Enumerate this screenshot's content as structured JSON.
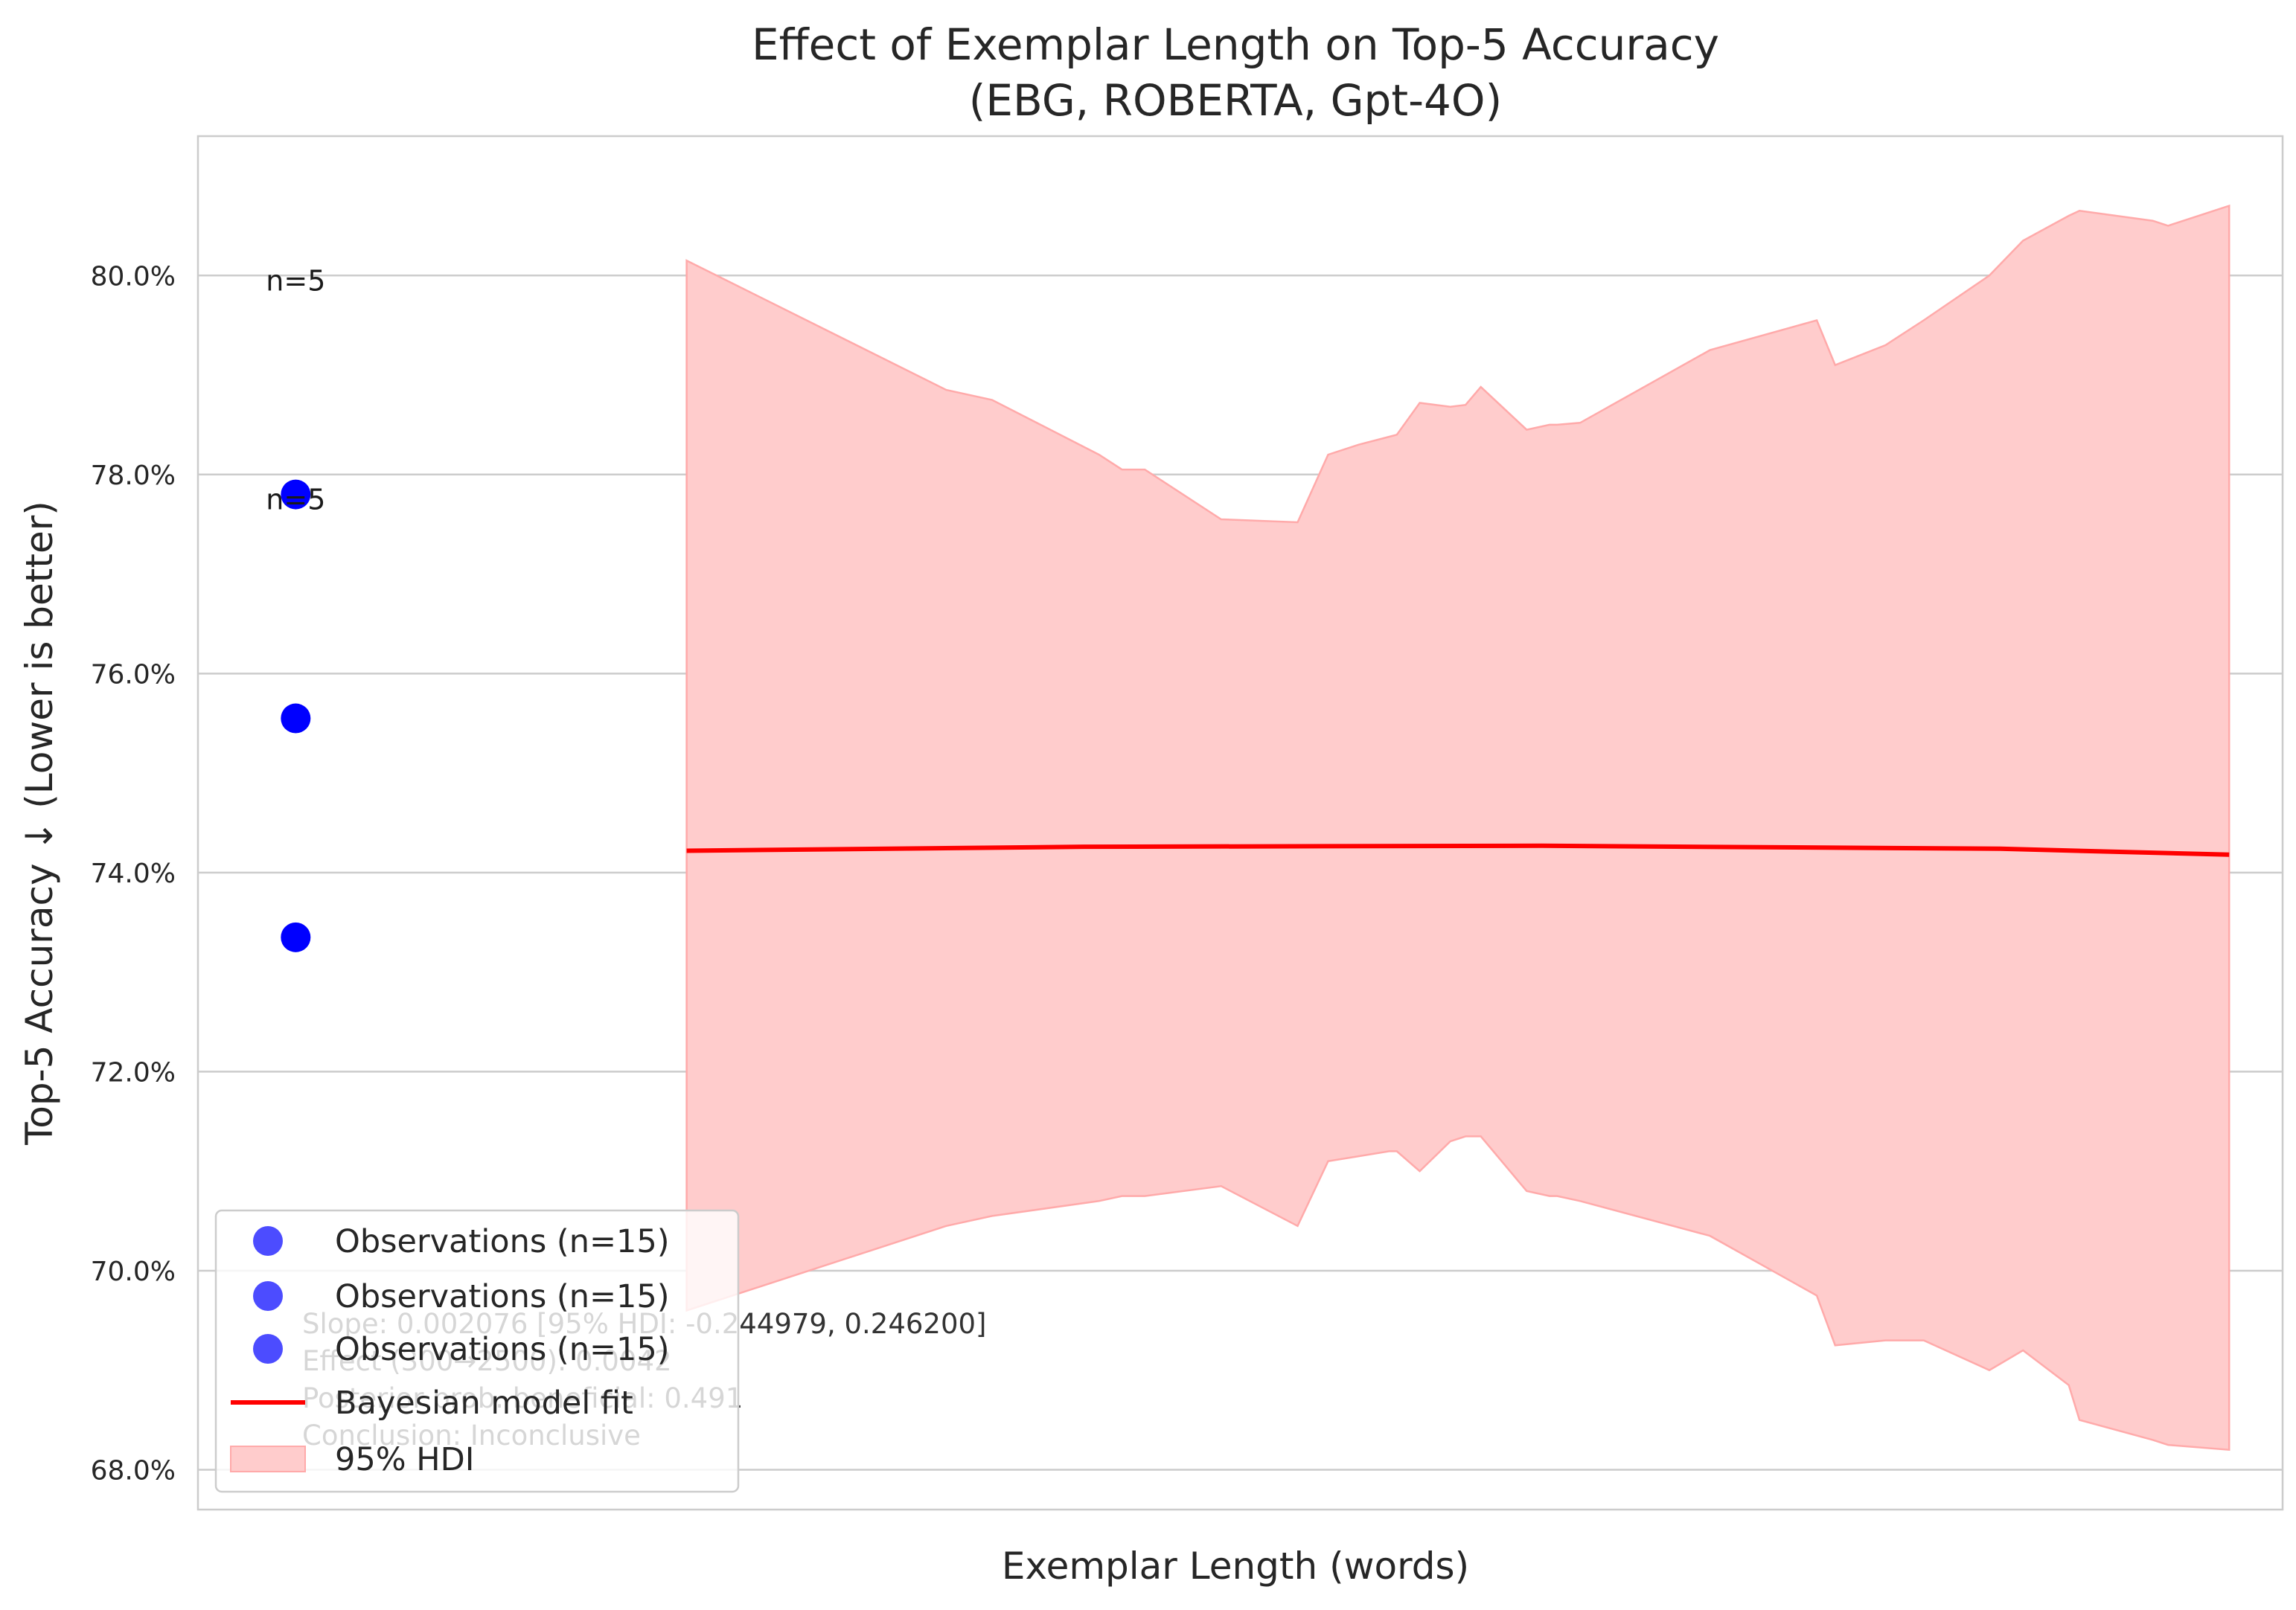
{
  "chart_data": {
    "type": "scatter",
    "title": "Effect of Exemplar Length on Top-5 Accuracy",
    "subtitle": "(EBG, ROBERTA, Gpt-4O)",
    "xlabel": "Exemplar Length (words)",
    "ylabel": "Top-5 Accuracy ↓ (Lower is better)",
    "ylim": [
      67.6,
      81.4
    ],
    "xlim": [
      -20,
      1345
    ],
    "y_ticks": [
      "68.0%",
      "70.0%",
      "72.0%",
      "74.0%",
      "76.0%",
      "78.0%",
      "80.0%"
    ],
    "y_tick_values": [
      68,
      70,
      72,
      74,
      76,
      78,
      80
    ],
    "grid": "horizontal",
    "legend_position": "lower-left",
    "colors": {
      "observations": "#0000ff",
      "fit": "#ff0000",
      "hdi": "#ffcccc"
    },
    "observations": [
      {
        "x": 44,
        "y": 77.8
      },
      {
        "x": 44,
        "y": 75.55
      },
      {
        "x": 44,
        "y": 73.35
      }
    ],
    "count_labels": [
      {
        "text": "n=5",
        "x": 44,
        "y": 79.85
      },
      {
        "text": "n=5",
        "x": 44,
        "y": 77.65
      }
    ],
    "fit": {
      "x": [
        300,
        560,
        860,
        1160,
        1310
      ],
      "y": [
        74.22,
        74.26,
        74.27,
        74.24,
        74.18
      ]
    },
    "hdi": {
      "x": [
        300,
        470,
        500,
        570,
        585,
        600,
        650,
        700,
        720,
        740,
        760,
        765,
        780,
        800,
        810,
        820,
        850,
        865,
        870,
        885,
        970,
        1040,
        1052,
        1085,
        1110,
        1153,
        1175,
        1205,
        1212,
        1260,
        1270,
        1310
      ],
      "upper": [
        80.15,
        78.85,
        78.75,
        78.2,
        78.05,
        78.05,
        77.55,
        77.52,
        78.2,
        78.3,
        78.38,
        78.4,
        78.72,
        78.68,
        78.7,
        78.88,
        78.45,
        78.5,
        78.5,
        78.52,
        79.25,
        79.55,
        79.1,
        79.3,
        79.55,
        80.0,
        80.35,
        80.6,
        80.65,
        80.55,
        80.5,
        80.7
      ],
      "lower": [
        69.6,
        70.45,
        70.55,
        70.7,
        70.75,
        70.75,
        70.85,
        70.45,
        71.1,
        71.15,
        71.2,
        71.2,
        71.0,
        71.3,
        71.35,
        71.35,
        70.8,
        70.75,
        70.75,
        70.7,
        70.35,
        69.75,
        69.25,
        69.3,
        69.3,
        69.0,
        69.2,
        68.85,
        68.5,
        68.3,
        68.25,
        68.2
      ]
    },
    "legend": [
      {
        "label": "Observations (n=15)",
        "kind": "marker"
      },
      {
        "label": "Observations (n=15)",
        "kind": "marker"
      },
      {
        "label": "Observations (n=15)",
        "kind": "marker"
      },
      {
        "label": "Bayesian model fit",
        "kind": "line"
      },
      {
        "label": "95% HDI",
        "kind": "patch"
      }
    ],
    "stats_text": [
      "Slope: 0.002076 [95% HDI: -0.244979, 0.246200]",
      "Effect (300→2500): 0.0042",
      "Posterior prob. beneficial: 0.491",
      "Conclusion: Inconclusive"
    ]
  }
}
